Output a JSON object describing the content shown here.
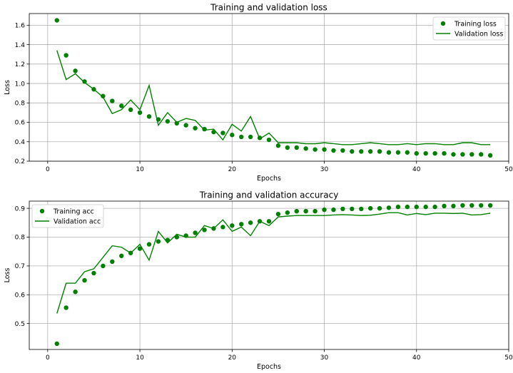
{
  "colors": {
    "series": "#008000"
  },
  "chart_data": [
    {
      "type": "line",
      "title": "Training and validation loss",
      "xlabel": "Epochs",
      "ylabel": "Loss",
      "xlim": [
        -2,
        50
      ],
      "ylim": [
        0.2,
        1.72
      ],
      "xticks": [
        0,
        10,
        20,
        30,
        40,
        50
      ],
      "yticks": [
        0.2,
        0.4,
        0.6,
        0.8,
        1.0,
        1.2,
        1.4,
        1.6
      ],
      "ytick_labels": [
        "0.2",
        "0.4",
        "0.6",
        "0.8",
        "1.0",
        "1.2",
        "1.4",
        "1.6"
      ],
      "grid": true,
      "legend": "top-right",
      "x": [
        1,
        2,
        3,
        4,
        5,
        6,
        7,
        8,
        9,
        10,
        11,
        12,
        13,
        14,
        15,
        16,
        17,
        18,
        19,
        20,
        21,
        22,
        23,
        24,
        25,
        26,
        27,
        28,
        29,
        30,
        31,
        32,
        33,
        34,
        35,
        36,
        37,
        38,
        39,
        40,
        41,
        42,
        43,
        44,
        45,
        46,
        47,
        48
      ],
      "series": [
        {
          "name": "Training loss",
          "style": "points",
          "values": [
            1.65,
            1.29,
            1.13,
            1.02,
            0.94,
            0.87,
            0.82,
            0.77,
            0.73,
            0.7,
            0.66,
            0.63,
            0.61,
            0.59,
            0.57,
            0.54,
            0.53,
            0.5,
            0.49,
            0.47,
            0.45,
            0.45,
            0.44,
            0.42,
            0.36,
            0.34,
            0.34,
            0.33,
            0.32,
            0.32,
            0.31,
            0.31,
            0.3,
            0.3,
            0.3,
            0.3,
            0.29,
            0.29,
            0.29,
            0.28,
            0.28,
            0.28,
            0.28,
            0.27,
            0.27,
            0.27,
            0.27,
            0.26
          ]
        },
        {
          "name": "Validation loss",
          "style": "line",
          "values": [
            1.34,
            1.04,
            1.1,
            1.01,
            0.94,
            0.86,
            0.69,
            0.73,
            0.83,
            0.73,
            0.98,
            0.57,
            0.7,
            0.6,
            0.64,
            0.62,
            0.52,
            0.53,
            0.42,
            0.58,
            0.51,
            0.66,
            0.43,
            0.49,
            0.39,
            0.39,
            0.39,
            0.38,
            0.38,
            0.39,
            0.38,
            0.37,
            0.37,
            0.38,
            0.39,
            0.38,
            0.37,
            0.37,
            0.38,
            0.37,
            0.38,
            0.38,
            0.37,
            0.37,
            0.39,
            0.39,
            0.37,
            0.37
          ]
        }
      ]
    },
    {
      "type": "line",
      "title": "Training and validation accuracy",
      "xlabel": "Epochs",
      "ylabel": "Loss",
      "xlim": [
        -2,
        50
      ],
      "ylim": [
        0.41,
        0.925
      ],
      "xticks": [
        0,
        10,
        20,
        30,
        40,
        50
      ],
      "yticks": [
        0.5,
        0.6,
        0.7,
        0.8,
        0.9
      ],
      "ytick_labels": [
        "0.5",
        "0.6",
        "0.7",
        "0.8",
        "0.9"
      ],
      "grid": true,
      "legend": "top-left",
      "x": [
        1,
        2,
        3,
        4,
        5,
        6,
        7,
        8,
        9,
        10,
        11,
        12,
        13,
        14,
        15,
        16,
        17,
        18,
        19,
        20,
        21,
        22,
        23,
        24,
        25,
        26,
        27,
        28,
        29,
        30,
        31,
        32,
        33,
        34,
        35,
        36,
        37,
        38,
        39,
        40,
        41,
        42,
        43,
        44,
        45,
        46,
        47,
        48
      ],
      "series": [
        {
          "name": "Training acc",
          "style": "points",
          "values": [
            0.43,
            0.555,
            0.61,
            0.65,
            0.675,
            0.7,
            0.715,
            0.735,
            0.745,
            0.76,
            0.775,
            0.785,
            0.79,
            0.8,
            0.805,
            0.815,
            0.825,
            0.83,
            0.835,
            0.84,
            0.845,
            0.85,
            0.855,
            0.855,
            0.88,
            0.885,
            0.89,
            0.89,
            0.89,
            0.895,
            0.895,
            0.898,
            0.898,
            0.898,
            0.9,
            0.9,
            0.902,
            0.905,
            0.905,
            0.905,
            0.905,
            0.905,
            0.908,
            0.908,
            0.91,
            0.91,
            0.91,
            0.91
          ]
        },
        {
          "name": "Validation acc",
          "style": "line",
          "values": [
            0.535,
            0.64,
            0.64,
            0.68,
            0.69,
            0.73,
            0.77,
            0.765,
            0.745,
            0.775,
            0.72,
            0.82,
            0.78,
            0.81,
            0.8,
            0.8,
            0.84,
            0.83,
            0.86,
            0.82,
            0.835,
            0.805,
            0.855,
            0.84,
            0.87,
            0.873,
            0.875,
            0.875,
            0.875,
            0.875,
            0.877,
            0.878,
            0.877,
            0.875,
            0.876,
            0.88,
            0.885,
            0.885,
            0.877,
            0.882,
            0.878,
            0.883,
            0.883,
            0.882,
            0.883,
            0.877,
            0.878,
            0.883
          ]
        }
      ]
    }
  ]
}
